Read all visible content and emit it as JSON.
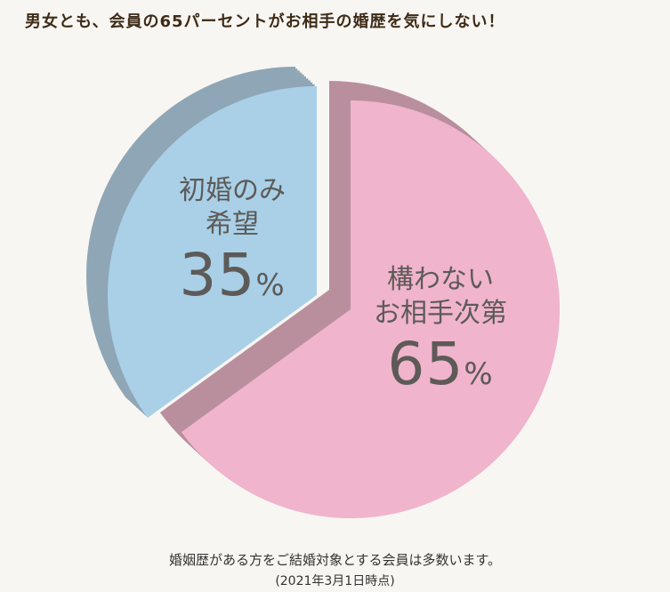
{
  "headline": "男女とも、会員の65パーセントがお相手の婚歴を気にしない！",
  "chart_data": {
    "type": "pie",
    "title": "",
    "slices": [
      {
        "label": "構わない お相手次第",
        "label_lines": [
          "構わない",
          "お相手次第"
        ],
        "value": 65,
        "value_text": "65",
        "unit": "%",
        "color": "#f0b4cc",
        "side_color": "#b98f9e"
      },
      {
        "label": "初婚のみ 希望",
        "label_lines": [
          "初婚のみ",
          "希望"
        ],
        "value": 35,
        "value_text": "35",
        "unit": "%",
        "color": "#a9d0e7",
        "side_color": "#8fa6b6"
      }
    ]
  },
  "caption": {
    "main": "婚姻歴がある方をご結婚対象とする会員は多数います。",
    "sub": "(2021年3月1日時点)"
  }
}
